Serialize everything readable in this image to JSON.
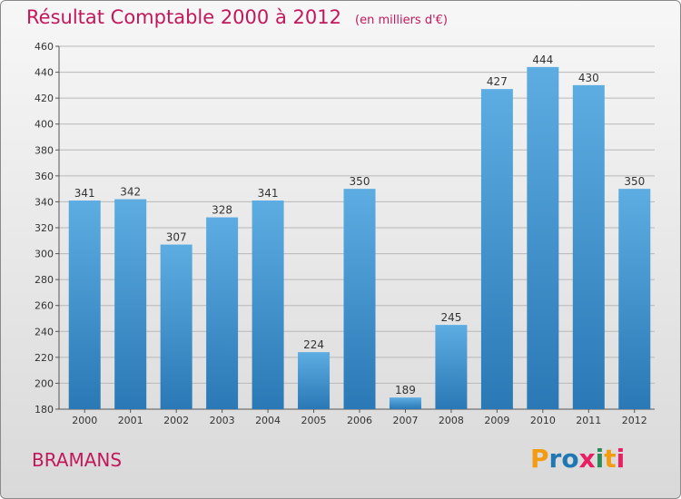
{
  "title": "Résultat Comptable 2000 à 2012",
  "subtitle": "(en milliers d'€)",
  "place": "BRAMANS",
  "logo": {
    "letters": [
      "P",
      "r",
      "o",
      "x",
      "i",
      "t",
      "i"
    ],
    "colors": [
      "#f39c12",
      "#1f77b4",
      "#1f77b4",
      "#e91e63",
      "#2e8b57",
      "#f39c12",
      "#e91e63"
    ]
  },
  "colors": {
    "bar_light": "#5dade2",
    "bar_dark": "#2a78b5",
    "accent": "#c2185b"
  },
  "chart_data": {
    "type": "bar",
    "title": "Résultat Comptable 2000 à 2012",
    "subtitle": "(en milliers d'€)",
    "categories": [
      "2000",
      "2001",
      "2002",
      "2003",
      "2004",
      "2005",
      "2006",
      "2007",
      "2008",
      "2009",
      "2010",
      "2011",
      "2012"
    ],
    "values": [
      341,
      342,
      307,
      328,
      341,
      224,
      350,
      189,
      245,
      427,
      444,
      430,
      350
    ],
    "ylim": [
      180,
      460
    ],
    "yticks": [
      180,
      200,
      220,
      240,
      260,
      280,
      300,
      320,
      340,
      360,
      380,
      400,
      420,
      440,
      460
    ],
    "grid": true,
    "data_labels": true
  }
}
